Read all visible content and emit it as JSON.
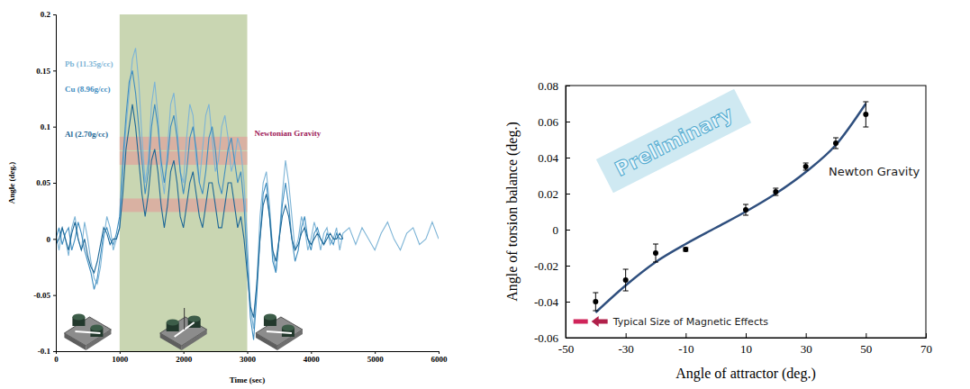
{
  "chart_data": [
    {
      "type": "line",
      "xlabel": "Time (sec)",
      "ylabel": "Angle (deg.)",
      "x": [
        0,
        50,
        100,
        150,
        200,
        250,
        300,
        350,
        400,
        450,
        500,
        550,
        600,
        650,
        700,
        750,
        800,
        850,
        900,
        950,
        1000,
        1050,
        1100,
        1150,
        1200,
        1250,
        1300,
        1350,
        1400,
        1450,
        1500,
        1550,
        1600,
        1650,
        1700,
        1750,
        1800,
        1850,
        1900,
        1950,
        2000,
        2050,
        2100,
        2150,
        2200,
        2250,
        2300,
        2350,
        2400,
        2450,
        2500,
        2550,
        2600,
        2650,
        2700,
        2750,
        2800,
        2850,
        2900,
        2950,
        3000,
        3050,
        3100,
        3150,
        3200,
        3250,
        3300,
        3350,
        3400,
        3450,
        3500,
        3550,
        3600,
        3650,
        3700,
        3750,
        3800,
        3850,
        3900,
        3950,
        4000,
        4050,
        4100,
        4150,
        4200,
        4250,
        4300,
        4350,
        4400,
        4450,
        4500,
        4600,
        4700,
        4800,
        4900,
        5000,
        5100,
        5200,
        5300,
        5400,
        5500,
        5600,
        5700,
        5800,
        5900,
        6000
      ],
      "series": [
        {
          "name": "Pb (11.35g/cc)",
          "color": "#7db4d6",
          "values": [
            0.005,
            -0.01,
            0.01,
            0.0,
            -0.015,
            0.01,
            0.02,
            0.0,
            -0.01,
            0.015,
            0.0,
            -0.02,
            -0.035,
            -0.04,
            -0.025,
            0.0,
            0.02,
            0.01,
            -0.01,
            0.0,
            0.01,
            0.06,
            0.1,
            0.13,
            0.16,
            0.17,
            0.14,
            0.09,
            0.05,
            0.07,
            0.12,
            0.14,
            0.11,
            0.06,
            0.04,
            0.08,
            0.12,
            0.13,
            0.1,
            0.06,
            0.05,
            0.09,
            0.12,
            0.11,
            0.07,
            0.05,
            0.08,
            0.11,
            0.12,
            0.09,
            0.06,
            0.07,
            0.1,
            0.11,
            0.09,
            0.06,
            0.07,
            0.09,
            0.08,
            0.05,
            0.0,
            -0.06,
            -0.08,
            -0.04,
            0.02,
            0.05,
            0.06,
            0.03,
            -0.01,
            -0.03,
            0.0,
            0.04,
            0.07,
            0.05,
            0.02,
            -0.01,
            0.0,
            0.02,
            0.01,
            -0.01,
            0.0,
            0.015,
            0.005,
            -0.01,
            0.005,
            0.01,
            -0.005,
            0.0,
            0.01,
            -0.01,
            0.005,
            0.01,
            -0.005,
            0.01,
            0.0,
            -0.01,
            0.005,
            0.015,
            0.0,
            -0.01,
            0.005,
            0.01,
            -0.005,
            0.0,
            0.015,
            0.0
          ]
        },
        {
          "name": "Cu (8.96g/cc)",
          "color": "#3f8dbf",
          "values": [
            0.0,
            0.01,
            -0.005,
            0.005,
            0.01,
            -0.01,
            0.0,
            0.015,
            0.005,
            -0.01,
            -0.02,
            -0.03,
            -0.045,
            -0.035,
            -0.015,
            0.005,
            0.01,
            0.0,
            -0.005,
            0.005,
            0.02,
            0.07,
            0.11,
            0.14,
            0.15,
            0.13,
            0.1,
            0.07,
            0.04,
            0.06,
            0.1,
            0.12,
            0.1,
            0.07,
            0.05,
            0.07,
            0.1,
            0.11,
            0.09,
            0.06,
            0.04,
            0.06,
            0.09,
            0.1,
            0.08,
            0.05,
            0.04,
            0.06,
            0.09,
            0.1,
            0.08,
            0.05,
            0.04,
            0.06,
            0.08,
            0.09,
            0.07,
            0.05,
            0.06,
            0.03,
            -0.02,
            -0.07,
            -0.09,
            -0.05,
            0.0,
            0.04,
            0.05,
            0.02,
            -0.02,
            -0.03,
            0.0,
            0.03,
            0.05,
            0.03,
            0.0,
            -0.02,
            -0.01,
            0.01,
            0.02,
            0.0,
            -0.01,
            0.005,
            0.01,
            0.0,
            -0.005,
            0.005,
            0.0,
            -0.005,
            0.005,
            0.0,
            0.0,
            null,
            null,
            null,
            null,
            null,
            null,
            null,
            null,
            null,
            null,
            null,
            null,
            null,
            null,
            null
          ]
        },
        {
          "name": "Al (2.70g/cc)",
          "color": "#1d6796",
          "values": [
            -0.005,
            0.0,
            0.01,
            0.0,
            -0.01,
            0.005,
            0.015,
            0.0,
            -0.01,
            0.0,
            -0.015,
            -0.025,
            -0.03,
            -0.02,
            -0.005,
            0.01,
            0.005,
            -0.005,
            0.0,
            0.0,
            0.01,
            0.04,
            0.08,
            0.1,
            0.12,
            0.1,
            0.07,
            0.04,
            0.02,
            0.04,
            0.07,
            0.08,
            0.06,
            0.03,
            0.01,
            0.03,
            0.06,
            0.07,
            0.05,
            0.02,
            0.01,
            0.03,
            0.05,
            0.06,
            0.04,
            0.02,
            0.01,
            0.03,
            0.05,
            0.05,
            0.03,
            0.01,
            0.01,
            0.03,
            0.05,
            0.05,
            0.03,
            0.01,
            0.02,
            0.0,
            -0.03,
            -0.06,
            -0.07,
            -0.04,
            0.0,
            0.03,
            0.04,
            0.02,
            -0.01,
            -0.02,
            0.0,
            0.02,
            0.03,
            0.02,
            0.0,
            -0.01,
            -0.005,
            0.005,
            0.01,
            0.0,
            -0.005,
            0.0,
            0.005,
            0.0,
            -0.005,
            0.0,
            0.005,
            0.0,
            0.0,
            0.005,
            0.0,
            null,
            null,
            null,
            null,
            null,
            null,
            null,
            null,
            null,
            null,
            null,
            null,
            null,
            null,
            null
          ]
        }
      ],
      "xlim": [
        0,
        6000
      ],
      "xticks": [
        0,
        1000,
        2000,
        3000,
        4000,
        5000,
        6000
      ],
      "ylim": [
        -0.1,
        0.2
      ],
      "yticks": [
        -0.1,
        -0.05,
        0,
        0.05,
        0.1,
        0.15,
        0.2
      ],
      "legend": "upper left",
      "shaded_region": [
        1000,
        3000
      ],
      "band_label": "Newtonian Gravity",
      "band_values": [
        0.085,
        0.072,
        0.03
      ],
      "band_errors": [
        0.006,
        0.006,
        0.006
      ]
    },
    {
      "type": "scatter",
      "xlabel": "Angle of attractor (deg.)",
      "ylabel": "Angle of torsion balance (deg.)",
      "xlim": [
        -50,
        70
      ],
      "xticks": [
        -50,
        -30,
        -10,
        10,
        30,
        50,
        70
      ],
      "ylim": [
        -0.06,
        0.08
      ],
      "yticks": [
        -0.06,
        -0.04,
        -0.02,
        0,
        0.02,
        0.04,
        0.06,
        0.08
      ],
      "series": [
        {
          "name": "Newton Gravity",
          "type": "line",
          "line_style": "solid",
          "color": "#2f4f7e",
          "x": [
            -40,
            -30,
            -20,
            -10,
            0,
            10,
            20,
            30,
            40,
            50
          ],
          "values": [
            -0.046,
            -0.031,
            -0.018,
            -0.008,
            0.001,
            0.01,
            0.02,
            0.032,
            0.047,
            0.07
          ]
        },
        {
          "type": "scatter",
          "marker": "circle",
          "color": "#000000",
          "x": [
            -40,
            -30,
            -20,
            -10,
            10,
            20,
            30,
            40,
            50
          ],
          "values": [
            -0.04,
            -0.028,
            -0.013,
            -0.011,
            0.011,
            0.021,
            0.035,
            0.048,
            0.064
          ],
          "errors": [
            0.005,
            0.006,
            0.005,
            0.001,
            0.003,
            0.002,
            0.002,
            0.003,
            0.007
          ]
        }
      ],
      "annotations": [
        {
          "text": "Preliminary"
        },
        {
          "text": "Typical Size of Magnetic Effects",
          "x": -45,
          "y": -0.051
        }
      ]
    }
  ]
}
